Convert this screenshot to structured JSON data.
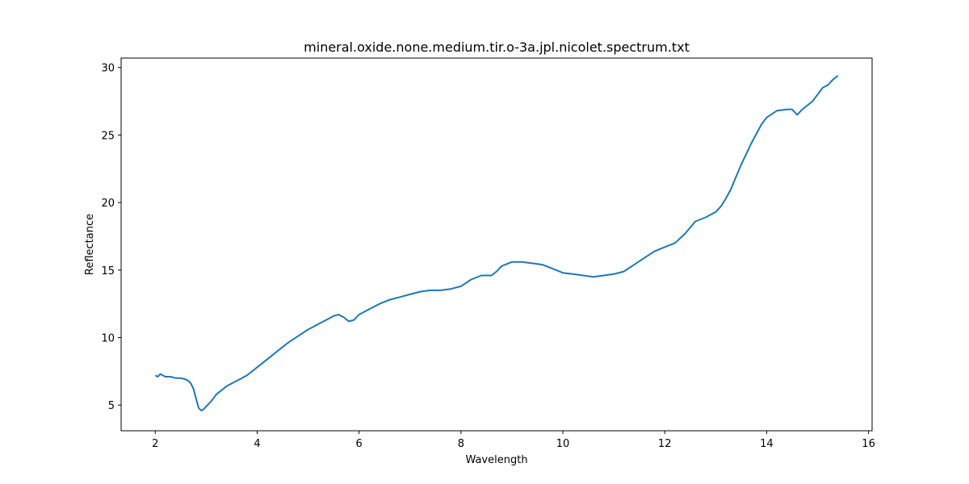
{
  "chart_data": {
    "type": "line",
    "title": "mineral.oxide.none.medium.tir.o-3a.jpl.nicolet.spectrum.txt",
    "xlabel": "Wavelength",
    "ylabel": "Reflectance",
    "xlim": [
      1.33,
      16.07
    ],
    "ylim": [
      3.1,
      30.7
    ],
    "xticks": [
      2,
      4,
      6,
      8,
      10,
      12,
      14,
      16
    ],
    "yticks": [
      5,
      10,
      15,
      20,
      25,
      30
    ],
    "grid": false,
    "line_color": "#1f77b4",
    "series": [
      {
        "x": [
          2.0,
          2.05,
          2.1,
          2.15,
          2.2,
          2.3,
          2.4,
          2.5,
          2.6,
          2.65,
          2.7,
          2.75,
          2.8,
          2.85,
          2.9,
          2.95,
          3.0,
          3.1,
          3.2,
          3.3,
          3.4,
          3.5,
          3.6,
          3.7,
          3.8,
          3.9,
          4.0,
          4.2,
          4.4,
          4.6,
          4.8,
          5.0,
          5.2,
          5.4,
          5.5,
          5.6,
          5.7,
          5.8,
          5.9,
          6.0,
          6.2,
          6.4,
          6.6,
          6.8,
          7.0,
          7.2,
          7.4,
          7.6,
          7.8,
          8.0,
          8.2,
          8.4,
          8.6,
          8.7,
          8.8,
          9.0,
          9.2,
          9.4,
          9.6,
          9.8,
          10.0,
          10.2,
          10.4,
          10.6,
          10.8,
          11.0,
          11.2,
          11.4,
          11.6,
          11.8,
          12.0,
          12.2,
          12.4,
          12.6,
          12.8,
          13.0,
          13.1,
          13.2,
          13.3,
          13.4,
          13.5,
          13.6,
          13.7,
          13.8,
          13.9,
          14.0,
          14.2,
          14.4,
          14.5,
          14.6,
          14.7,
          14.8,
          14.9,
          15.0,
          15.1,
          15.2,
          15.3,
          15.4
        ],
        "y": [
          7.2,
          7.1,
          7.3,
          7.2,
          7.1,
          7.1,
          7.0,
          7.0,
          6.9,
          6.8,
          6.6,
          6.2,
          5.5,
          4.8,
          4.6,
          4.7,
          4.9,
          5.3,
          5.8,
          6.1,
          6.4,
          6.6,
          6.8,
          7.0,
          7.2,
          7.5,
          7.8,
          8.4,
          9.0,
          9.6,
          10.1,
          10.6,
          11.0,
          11.4,
          11.6,
          11.7,
          11.5,
          11.2,
          11.3,
          11.7,
          12.1,
          12.5,
          12.8,
          13.0,
          13.2,
          13.4,
          13.5,
          13.5,
          13.6,
          13.8,
          14.3,
          14.6,
          14.6,
          14.9,
          15.3,
          15.6,
          15.6,
          15.5,
          15.4,
          15.1,
          14.8,
          14.7,
          14.6,
          14.5,
          14.6,
          14.7,
          14.9,
          15.4,
          15.9,
          16.4,
          16.7,
          17.0,
          17.7,
          18.6,
          18.9,
          19.3,
          19.7,
          20.3,
          21.0,
          21.9,
          22.8,
          23.6,
          24.4,
          25.1,
          25.8,
          26.3,
          26.8,
          26.9,
          26.9,
          26.5,
          26.9,
          27.2,
          27.5,
          28.0,
          28.5,
          28.7,
          29.1,
          29.4
        ]
      }
    ]
  }
}
